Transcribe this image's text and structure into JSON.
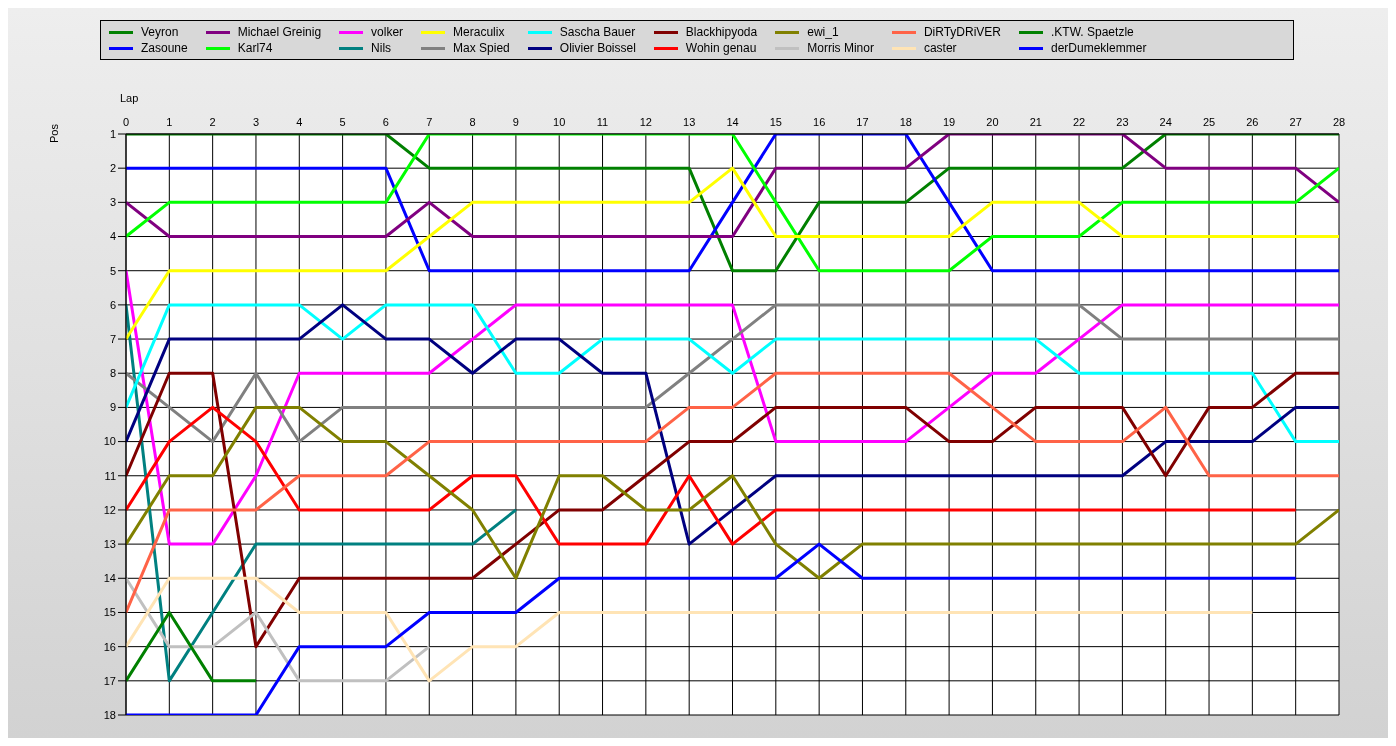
{
  "chart_data": {
    "type": "line",
    "xlabel": "Lap",
    "ylabel": "Pos",
    "x": [
      0,
      1,
      2,
      3,
      4,
      5,
      6,
      7,
      8,
      9,
      10,
      11,
      12,
      13,
      14,
      15,
      16,
      17,
      18,
      19,
      20,
      21,
      22,
      23,
      24,
      25,
      26,
      27,
      28
    ],
    "xlim": [
      0,
      28
    ],
    "xticks": [
      0,
      1,
      2,
      3,
      4,
      5,
      6,
      7,
      8,
      9,
      10,
      11,
      12,
      13,
      14,
      15,
      16,
      17,
      18,
      19,
      20,
      21,
      22,
      23,
      24,
      25,
      26,
      27,
      28
    ],
    "ylim": [
      18,
      1
    ],
    "yticks": [
      1,
      2,
      3,
      4,
      5,
      6,
      7,
      8,
      9,
      10,
      11,
      12,
      13,
      14,
      15,
      16,
      17,
      18
    ],
    "grid": true,
    "legend": "top",
    "marker": "none",
    "line_style": "solid",
    "series": [
      {
        "name": "Veyron",
        "color": "#008000",
        "values": [
          1,
          1,
          1,
          1,
          1,
          1,
          1,
          2,
          2,
          2,
          2,
          2,
          2,
          2,
          5,
          5,
          3,
          3,
          3,
          2,
          2,
          2,
          2,
          2,
          1,
          1,
          1,
          1,
          1
        ]
      },
      {
        "name": "Zasoune",
        "color": "#0000ff",
        "values": [
          2,
          2,
          2,
          2,
          2,
          2,
          2,
          5,
          5,
          5,
          5,
          5,
          5,
          5,
          3,
          1,
          1,
          1,
          1,
          3,
          5,
          5,
          5,
          5,
          5,
          5,
          5,
          5,
          5
        ]
      },
      {
        "name": "Michael Greinig",
        "color": "#800080",
        "values": [
          3,
          4,
          4,
          4,
          4,
          4,
          4,
          3,
          4,
          4,
          4,
          4,
          4,
          4,
          4,
          2,
          2,
          2,
          2,
          1,
          1,
          1,
          1,
          1,
          2,
          2,
          2,
          2,
          3
        ]
      },
      {
        "name": "Karl74",
        "color": "#00ff00",
        "values": [
          4,
          3,
          3,
          3,
          3,
          3,
          3,
          1,
          1,
          1,
          1,
          1,
          1,
          1,
          1,
          3,
          5,
          5,
          5,
          5,
          4,
          4,
          4,
          3,
          3,
          3,
          3,
          3,
          2
        ]
      },
      {
        "name": "volker",
        "color": "#ff00ff",
        "values": [
          5,
          13,
          13,
          11,
          8,
          8,
          8,
          8,
          7,
          6,
          6,
          6,
          6,
          6,
          6,
          10,
          10,
          10,
          10,
          9,
          8,
          8,
          7,
          6,
          6,
          6,
          6,
          6,
          6
        ]
      },
      {
        "name": "Nils",
        "color": "#008080",
        "values": [
          6,
          17,
          15,
          13,
          13,
          13,
          13,
          13,
          13,
          12,
          null,
          null,
          null,
          null,
          null,
          null,
          null,
          null,
          null,
          null,
          null,
          null,
          null,
          null,
          null,
          null,
          null,
          null,
          null
        ]
      },
      {
        "name": "Meraculix",
        "color": "#ffff00",
        "values": [
          7,
          5,
          5,
          5,
          5,
          5,
          5,
          4,
          3,
          3,
          3,
          3,
          3,
          3,
          2,
          4,
          4,
          4,
          4,
          4,
          3,
          3,
          3,
          4,
          4,
          4,
          4,
          4,
          4
        ]
      },
      {
        "name": "Max Spied",
        "color": "#808080",
        "values": [
          8,
          9,
          10,
          8,
          10,
          9,
          9,
          9,
          9,
          9,
          9,
          9,
          9,
          8,
          7,
          6,
          6,
          6,
          6,
          6,
          6,
          6,
          6,
          7,
          7,
          7,
          7,
          7,
          7
        ]
      },
      {
        "name": "Sascha Bauer",
        "color": "#00ffff",
        "values": [
          9,
          6,
          6,
          6,
          6,
          7,
          6,
          6,
          6,
          8,
          8,
          7,
          7,
          7,
          8,
          7,
          7,
          7,
          7,
          7,
          7,
          7,
          8,
          8,
          8,
          8,
          8,
          10,
          10
        ]
      },
      {
        "name": "Olivier Boissel",
        "color": "#000080",
        "values": [
          10,
          7,
          7,
          7,
          7,
          6,
          7,
          7,
          8,
          7,
          7,
          8,
          8,
          13,
          12,
          11,
          11,
          11,
          11,
          11,
          11,
          11,
          11,
          11,
          10,
          10,
          10,
          9,
          9
        ]
      },
      {
        "name": "Blackhipyoda",
        "color": "#800000",
        "values": [
          11,
          8,
          8,
          16,
          14,
          14,
          14,
          14,
          14,
          13,
          12,
          12,
          11,
          10,
          10,
          9,
          9,
          9,
          9,
          10,
          10,
          9,
          9,
          9,
          11,
          9,
          9,
          8,
          8
        ]
      },
      {
        "name": "Wohin genau",
        "color": "#ff0000",
        "values": [
          12,
          10,
          9,
          10,
          12,
          12,
          12,
          12,
          11,
          11,
          13,
          13,
          13,
          11,
          13,
          12,
          12,
          12,
          12,
          12,
          12,
          12,
          12,
          12,
          12,
          12,
          12,
          12,
          null
        ]
      },
      {
        "name": "ewi_1",
        "color": "#808000",
        "values": [
          13,
          11,
          11,
          9,
          9,
          10,
          10,
          11,
          12,
          14,
          11,
          11,
          12,
          12,
          11,
          13,
          14,
          13,
          13,
          13,
          13,
          13,
          13,
          13,
          13,
          13,
          13,
          13,
          12
        ]
      },
      {
        "name": "Morris Minor",
        "color": "#c0c0c0",
        "values": [
          14,
          16,
          16,
          15,
          17,
          17,
          17,
          16,
          null,
          null,
          null,
          null,
          null,
          null,
          null,
          null,
          null,
          null,
          null,
          null,
          null,
          null,
          null,
          null,
          null,
          null,
          null,
          null,
          null
        ]
      },
      {
        "name": "DiRTyDRiVER",
        "color": "#ff6347",
        "values": [
          15,
          12,
          12,
          12,
          11,
          11,
          11,
          10,
          10,
          10,
          10,
          10,
          10,
          9,
          9,
          8,
          8,
          8,
          8,
          8,
          9,
          10,
          10,
          10,
          9,
          11,
          11,
          11,
          11
        ]
      },
      {
        "name": "caster",
        "color": "#ffe4b5",
        "values": [
          16,
          14,
          14,
          14,
          15,
          15,
          15,
          17,
          16,
          16,
          15,
          15,
          15,
          15,
          15,
          15,
          15,
          15,
          15,
          15,
          15,
          15,
          15,
          15,
          15,
          15,
          15,
          null,
          null
        ]
      },
      {
        "name": ".KTW. Spaetzle",
        "color": "#008000",
        "values": [
          17,
          15,
          17,
          17,
          null,
          null,
          null,
          null,
          null,
          null,
          null,
          null,
          null,
          null,
          null,
          null,
          null,
          null,
          null,
          null,
          null,
          null,
          null,
          null,
          null,
          null,
          null,
          null,
          null
        ]
      },
      {
        "name": "derDumeklemmer",
        "color": "#0000ff",
        "values": [
          18,
          18,
          18,
          18,
          16,
          16,
          16,
          15,
          15,
          15,
          14,
          14,
          14,
          14,
          14,
          14,
          13,
          14,
          14,
          14,
          14,
          14,
          14,
          14,
          14,
          14,
          14,
          14,
          null
        ]
      }
    ]
  }
}
